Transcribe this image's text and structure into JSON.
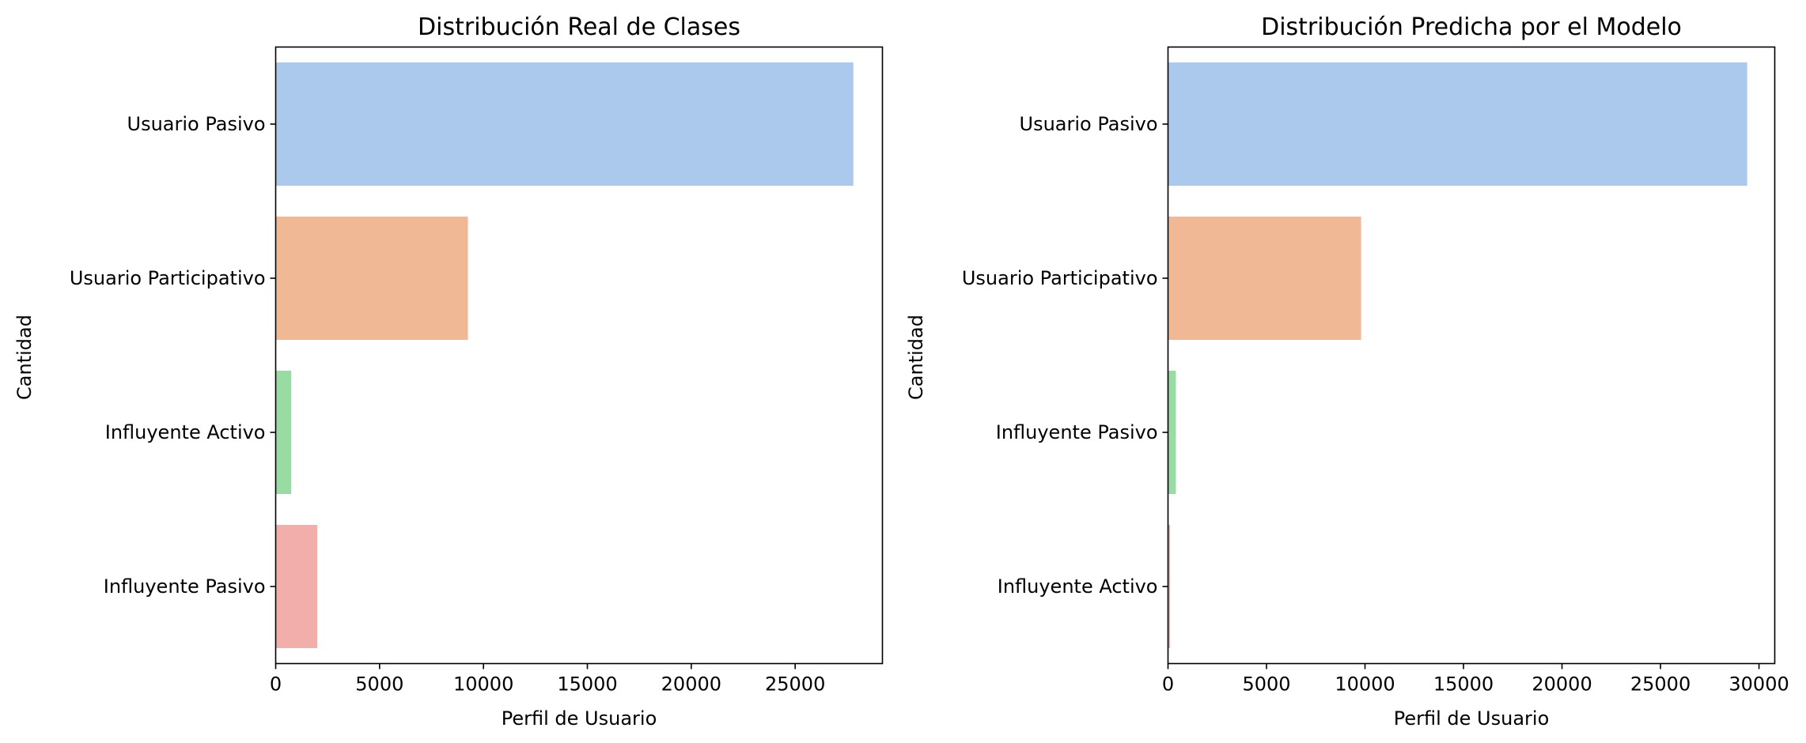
{
  "colors": {
    "palette": [
      "#abc9ed",
      "#f0b894",
      "#98dca3",
      "#f2aeaa"
    ],
    "axis": "#000000",
    "background": "#ffffff"
  },
  "chart_data": [
    {
      "type": "bar",
      "orientation": "horizontal",
      "title": "Distribución Real de Clases",
      "xlabel": "Perfil de Usuario",
      "ylabel": "Cantidad",
      "categories": [
        "Usuario Pasivo",
        "Usuario Participativo",
        "Influyente Activo",
        "Influyente Pasivo"
      ],
      "values": [
        27800,
        9250,
        750,
        2000
      ],
      "xlim": [
        0,
        29200
      ],
      "xticks": [
        0,
        5000,
        10000,
        15000,
        20000,
        25000
      ],
      "grid": false
    },
    {
      "type": "bar",
      "orientation": "horizontal",
      "title": "Distribución Predicha por el Modelo",
      "xlabel": "Perfil de Usuario",
      "ylabel": "Cantidad",
      "categories": [
        "Usuario Pasivo",
        "Usuario Participativo",
        "Influyente Pasivo",
        "Influyente Activo"
      ],
      "values": [
        29400,
        9800,
        400,
        100
      ],
      "xlim": [
        0,
        30800
      ],
      "xticks": [
        0,
        5000,
        10000,
        15000,
        20000,
        25000,
        30000
      ],
      "grid": false
    }
  ]
}
